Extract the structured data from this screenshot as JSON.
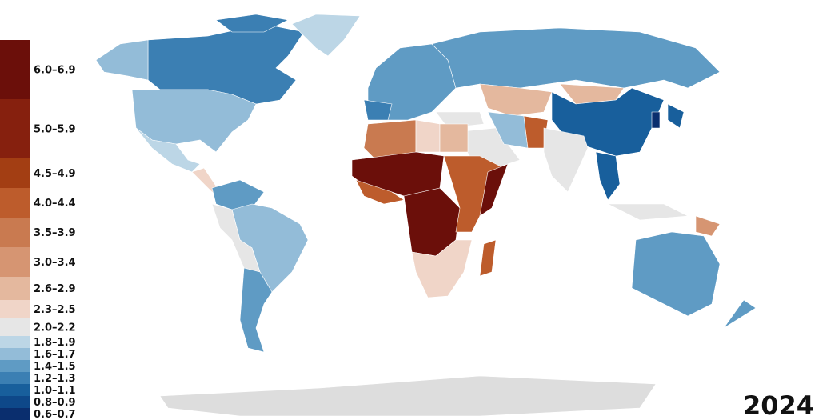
{
  "legend": {
    "items": [
      {
        "label": "6.0–6.9",
        "color": "#6b0f0a"
      },
      {
        "label": "5.0–5.9",
        "color": "#86200e"
      },
      {
        "label": "4.5–4.9",
        "color": "#a33e13"
      },
      {
        "label": "4.0–4.4",
        "color": "#bd5c2c"
      },
      {
        "label": "3.5–3.9",
        "color": "#c97a50"
      },
      {
        "label": "3.0–3.4",
        "color": "#d69572"
      },
      {
        "label": "2.6–2.9",
        "color": "#e4b89e"
      },
      {
        "label": "2.3–2.5",
        "color": "#f0d5c8"
      },
      {
        "label": "2.0–2.2",
        "color": "#e6e6e6"
      },
      {
        "label": "1.8–1.9",
        "color": "#bcd6e6"
      },
      {
        "label": "1.6–1.7",
        "color": "#93bcd8"
      },
      {
        "label": "1.4–1.5",
        "color": "#5f9bc4"
      },
      {
        "label": "1.2–1.3",
        "color": "#3b7fb3"
      },
      {
        "label": "1.0–1.1",
        "color": "#185f9c"
      },
      {
        "label": "0.8–0.9",
        "color": "#0e4889"
      },
      {
        "label": "0.6–0.7",
        "color": "#0a2e6e"
      }
    ]
  },
  "year": "2024"
}
